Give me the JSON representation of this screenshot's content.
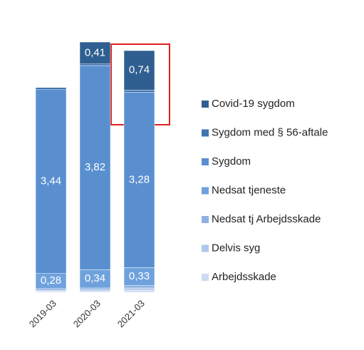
{
  "chart_data": {
    "type": "stacked_bar",
    "categories": [
      "2019-03",
      "2020-03",
      "2021-03"
    ],
    "series": [
      {
        "name": "Arbejdsskade",
        "color": "#cddbf0",
        "values": [
          0.02,
          0.02,
          0.04
        ]
      },
      {
        "name": "Delvis syg",
        "color": "#afc7ea",
        "values": [
          0.02,
          0.03,
          0.04
        ]
      },
      {
        "name": "Nedsat tj Arbejdsskade",
        "color": "#8fb2e2",
        "values": [
          0.03,
          0.03,
          0.05
        ]
      },
      {
        "name": "Nedsat tjeneste",
        "color": "#6fa2dd",
        "values": [
          0.28,
          0.34,
          0.33
        ],
        "value_labels": [
          "0,28",
          "0,34",
          "0,33"
        ]
      },
      {
        "name": "Sygdom",
        "color": "#5a8fcf",
        "values": [
          3.44,
          3.82,
          3.28
        ],
        "value_labels": [
          "3,44",
          "3,82",
          "3,28"
        ]
      },
      {
        "name": "Sygdom med § 56-aftale",
        "color": "#3f74b0",
        "values": [
          0.04,
          0.03,
          0.04
        ]
      },
      {
        "name": "Covid-19 sygdom",
        "color": "#2f5f90",
        "values": [
          0,
          0.41,
          0.74
        ],
        "value_labels": [
          null,
          "0,41",
          "0,74"
        ]
      }
    ]
  }
}
